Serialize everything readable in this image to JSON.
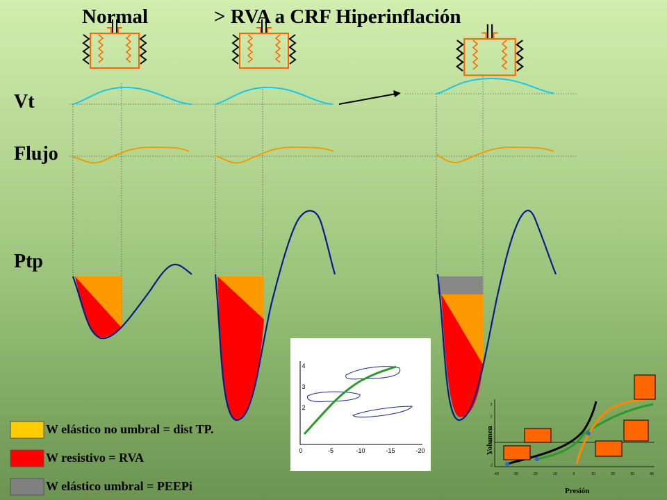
{
  "header": {
    "titles": [
      "Normal",
      "> RVA a CRF Hiperinflación"
    ]
  },
  "labels": {
    "vt": "Vt",
    "flujo": "Flujo",
    "ptp": "Ptp"
  },
  "legend": [
    {
      "label": "W elástico no umbral = dist TP."
    },
    {
      "label": "W resistivo = RVA"
    },
    {
      "label": "W elástico umbral = PEEPi"
    }
  ],
  "inset_left": {
    "yticks": [
      "4",
      "3",
      "2"
    ],
    "xticks": [
      "0",
      "-5",
      "-10",
      "-15",
      "-20"
    ]
  },
  "inset_right": {
    "ylabel": "Volumen",
    "xlabel": "Presión",
    "yticks": [
      "3",
      "2",
      "1",
      "0",
      "-1",
      "-2"
    ],
    "xticks": [
      "-40",
      "-30",
      "-20",
      "-10",
      "0",
      "10",
      "20",
      "30",
      "40"
    ]
  }
}
